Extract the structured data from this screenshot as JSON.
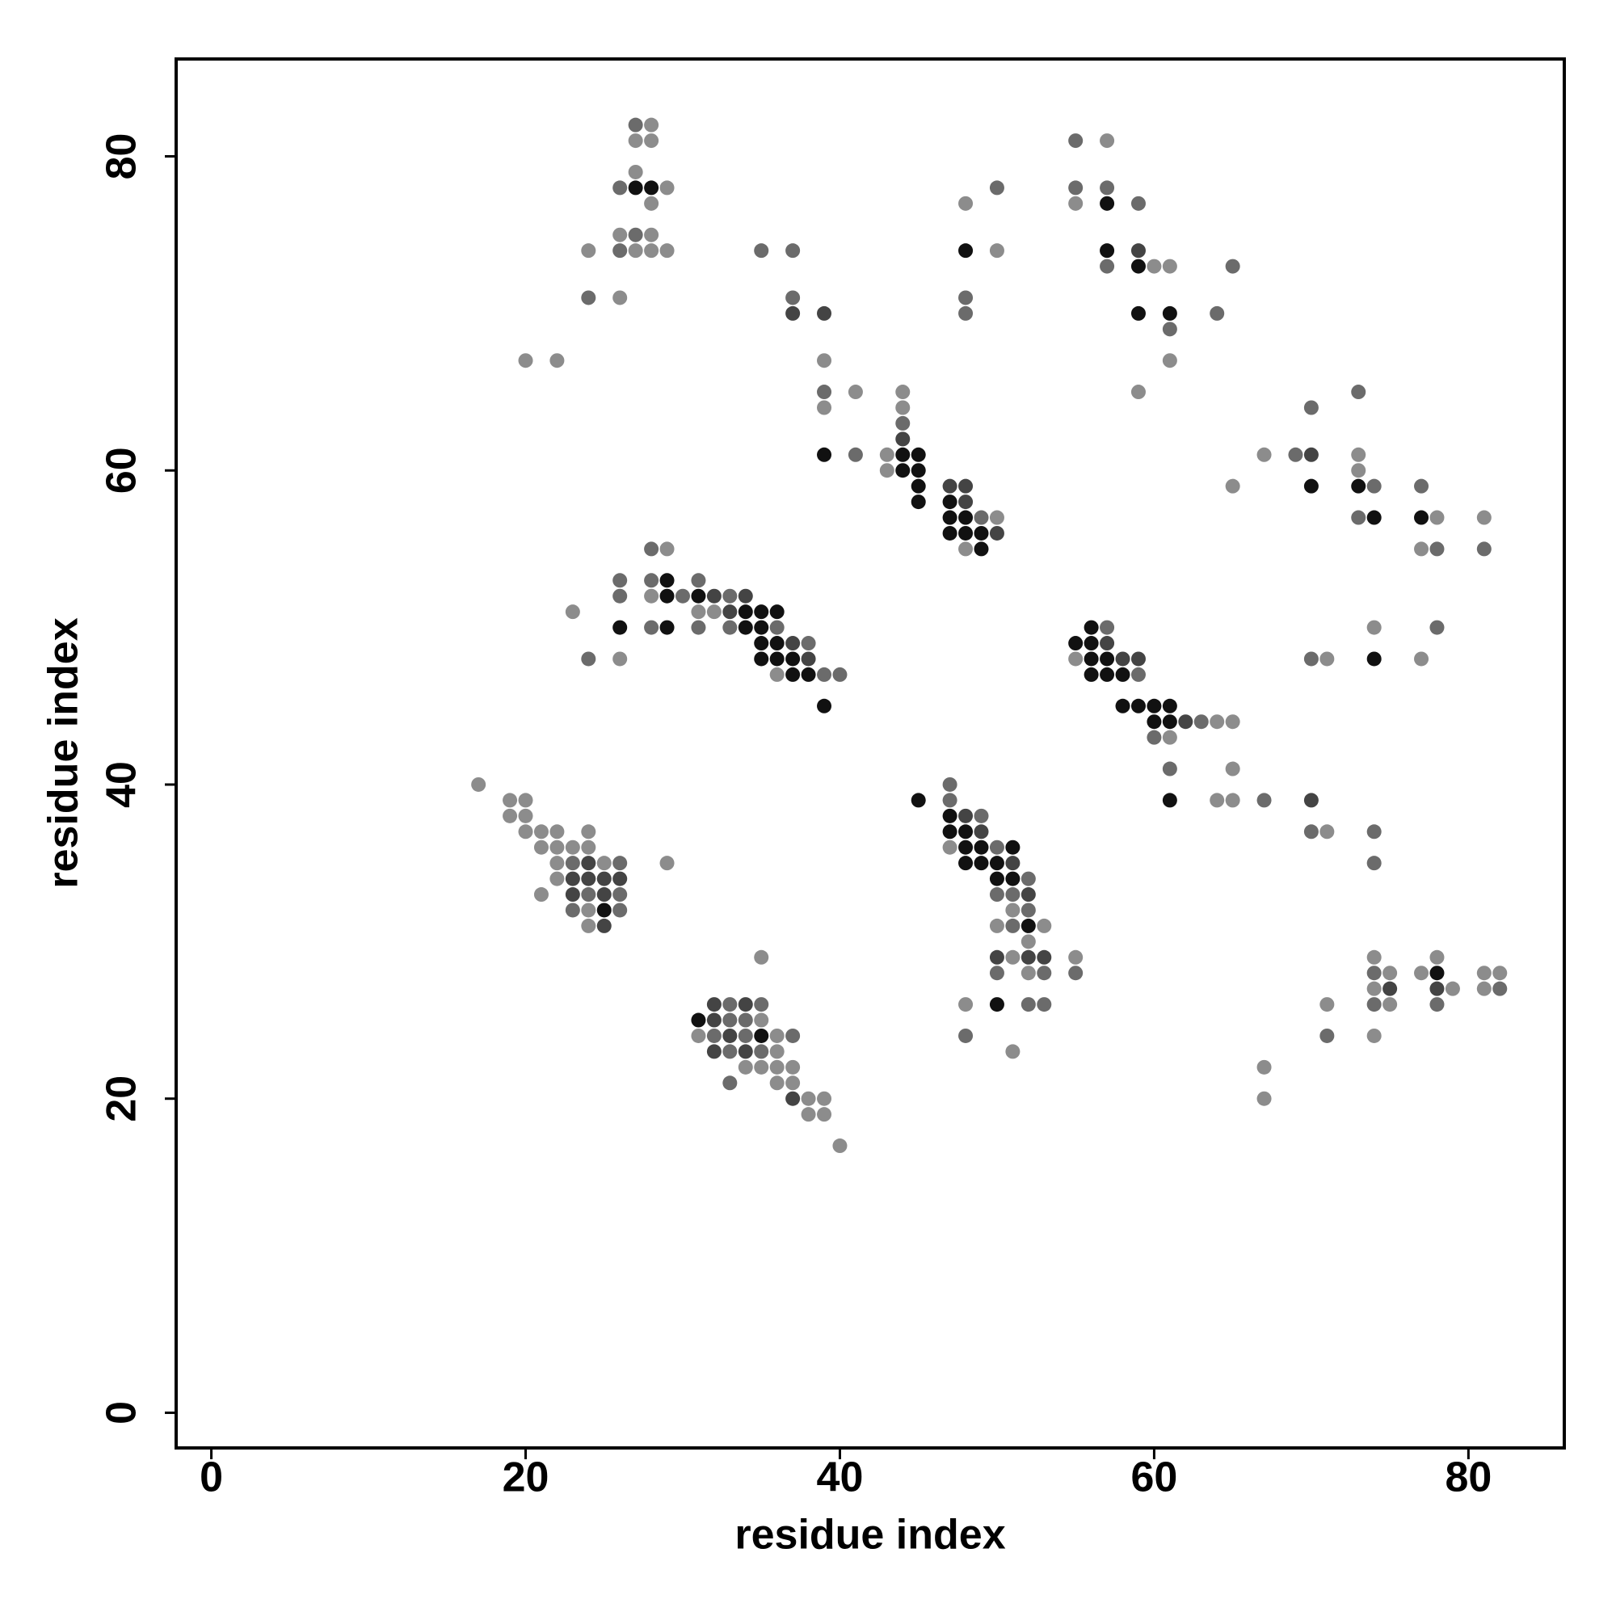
{
  "chart_data": {
    "type": "scatter",
    "x_label": "residue index",
    "y_label": "residue index",
    "xlim": [
      -2.24,
      86.1
    ],
    "ylim": [
      -2.24,
      86.2
    ],
    "xticks": [
      0,
      20,
      40,
      60,
      80
    ],
    "yticks": [
      0,
      20,
      40,
      60,
      80
    ],
    "series": [
      {
        "color": "#8c8c8c",
        "x": [
          28,
          27,
          28,
          27,
          29,
          28,
          26,
          28,
          24,
          27,
          28,
          29,
          26,
          20,
          22,
          39,
          41,
          39,
          44,
          44,
          43,
          43,
          50,
          48,
          48,
          50,
          57,
          55,
          60,
          61,
          61,
          59,
          67,
          73,
          73,
          65,
          78,
          81,
          77,
          74,
          71,
          77,
          29,
          23,
          28,
          31,
          32,
          26,
          36,
          55,
          64,
          65,
          61,
          65,
          64,
          65,
          71,
          47,
          51,
          50,
          53,
          52,
          51,
          55,
          52,
          48,
          51,
          17,
          19,
          20,
          19,
          20,
          20,
          21,
          22,
          24,
          21,
          22,
          23,
          24,
          22,
          25,
          29,
          22,
          21,
          24,
          24,
          35,
          35,
          31,
          36,
          36,
          34,
          35,
          36,
          37,
          36,
          37,
          38,
          39,
          38,
          39,
          40,
          67,
          67,
          71,
          74,
          75,
          74,
          75,
          74,
          77,
          78,
          79,
          81,
          82,
          81
        ],
        "values": [
          82,
          81,
          81,
          79,
          78,
          77,
          75,
          75,
          74,
          74,
          74,
          74,
          71,
          67,
          67,
          67,
          65,
          64,
          65,
          64,
          61,
          60,
          57,
          55,
          77,
          74,
          81,
          77,
          73,
          73,
          67,
          65,
          61,
          61,
          60,
          59,
          57,
          57,
          55,
          50,
          48,
          48,
          55,
          51,
          52,
          51,
          51,
          48,
          47,
          48,
          44,
          44,
          43,
          41,
          39,
          39,
          37,
          36,
          32,
          31,
          31,
          30,
          29,
          29,
          28,
          26,
          23,
          40,
          39,
          39,
          38,
          38,
          37,
          37,
          37,
          37,
          36,
          36,
          36,
          36,
          35,
          35,
          35,
          34,
          33,
          32,
          31,
          29,
          25,
          24,
          24,
          23,
          22,
          22,
          22,
          22,
          21,
          21,
          20,
          20,
          19,
          19,
          17,
          22,
          20,
          26,
          29,
          28,
          27,
          26,
          24,
          28,
          29,
          27,
          28,
          28,
          27
        ]
      },
      {
        "color": "#6b6b6b",
        "x": [
          27,
          26,
          27,
          26,
          24,
          35,
          37,
          37,
          39,
          41,
          44,
          49,
          48,
          48,
          50,
          55,
          55,
          57,
          59,
          57,
          65,
          64,
          61,
          69,
          70,
          73,
          74,
          73,
          77,
          78,
          81,
          78,
          70,
          28,
          26,
          28,
          31,
          26,
          30,
          33,
          28,
          31,
          33,
          36,
          38,
          24,
          39,
          40,
          57,
          59,
          63,
          60,
          61,
          67,
          70,
          74,
          74,
          47,
          47,
          49,
          50,
          52,
          50,
          51,
          52,
          51,
          50,
          53,
          55,
          52,
          53,
          48,
          23,
          26,
          24,
          26,
          23,
          26,
          33,
          35,
          33,
          34,
          32,
          34,
          37,
          33,
          35,
          33,
          71,
          74,
          74,
          78,
          82
        ],
        "values": [
          82,
          78,
          75,
          74,
          71,
          74,
          74,
          71,
          65,
          61,
          63,
          57,
          71,
          70,
          78,
          81,
          78,
          78,
          77,
          73,
          73,
          70,
          69,
          61,
          64,
          65,
          59,
          57,
          59,
          55,
          55,
          50,
          48,
          55,
          53,
          53,
          53,
          52,
          52,
          52,
          50,
          50,
          50,
          50,
          49,
          48,
          47,
          47,
          50,
          47,
          44,
          43,
          41,
          39,
          37,
          37,
          35,
          40,
          39,
          38,
          36,
          34,
          33,
          33,
          32,
          31,
          28,
          28,
          28,
          26,
          26,
          24,
          35,
          35,
          33,
          33,
          32,
          32,
          26,
          26,
          25,
          25,
          24,
          24,
          24,
          23,
          23,
          21,
          24,
          28,
          26,
          26,
          27
        ]
      },
      {
        "color": "#444444",
        "x": [
          37,
          39,
          44,
          47,
          48,
          48,
          50,
          59,
          70,
          32,
          34,
          33,
          37,
          38,
          57,
          58,
          59,
          62,
          70,
          48,
          49,
          51,
          52,
          50,
          52,
          53,
          24,
          23,
          24,
          25,
          26,
          23,
          25,
          25,
          32,
          34,
          32,
          33,
          32,
          34,
          37,
          75,
          78
        ],
        "values": [
          70,
          70,
          62,
          59,
          59,
          58,
          56,
          74,
          61,
          52,
          52,
          51,
          49,
          48,
          49,
          48,
          48,
          44,
          39,
          38,
          37,
          35,
          33,
          29,
          29,
          29,
          35,
          34,
          34,
          34,
          34,
          33,
          33,
          31,
          26,
          26,
          25,
          24,
          23,
          23,
          20,
          27,
          27
        ]
      },
      {
        "color": "#111111",
        "x": [
          27,
          28,
          39,
          44,
          45,
          44,
          45,
          45,
          45,
          47,
          47,
          48,
          47,
          48,
          49,
          49,
          48,
          57,
          57,
          59,
          59,
          61,
          70,
          73,
          74,
          77,
          74,
          29,
          29,
          31,
          34,
          35,
          36,
          26,
          29,
          34,
          35,
          35,
          36,
          35,
          36,
          37,
          37,
          38,
          39,
          55,
          56,
          56,
          56,
          57,
          56,
          57,
          58,
          58,
          59,
          60,
          61,
          60,
          61,
          61,
          45,
          47,
          47,
          48,
          48,
          49,
          51,
          48,
          49,
          50,
          50,
          51,
          52,
          50,
          25,
          31,
          35,
          78
        ],
        "values": [
          78,
          78,
          61,
          61,
          61,
          60,
          60,
          59,
          58,
          58,
          57,
          57,
          56,
          56,
          56,
          55,
          74,
          77,
          74,
          73,
          70,
          70,
          59,
          59,
          57,
          57,
          48,
          53,
          52,
          52,
          51,
          51,
          51,
          50,
          50,
          50,
          50,
          49,
          49,
          48,
          48,
          48,
          47,
          47,
          45,
          49,
          50,
          49,
          48,
          48,
          47,
          47,
          47,
          45,
          45,
          45,
          45,
          44,
          44,
          39,
          39,
          38,
          37,
          37,
          36,
          36,
          36,
          35,
          35,
          35,
          34,
          34,
          31,
          26,
          32,
          25,
          24,
          28
        ]
      }
    ]
  }
}
